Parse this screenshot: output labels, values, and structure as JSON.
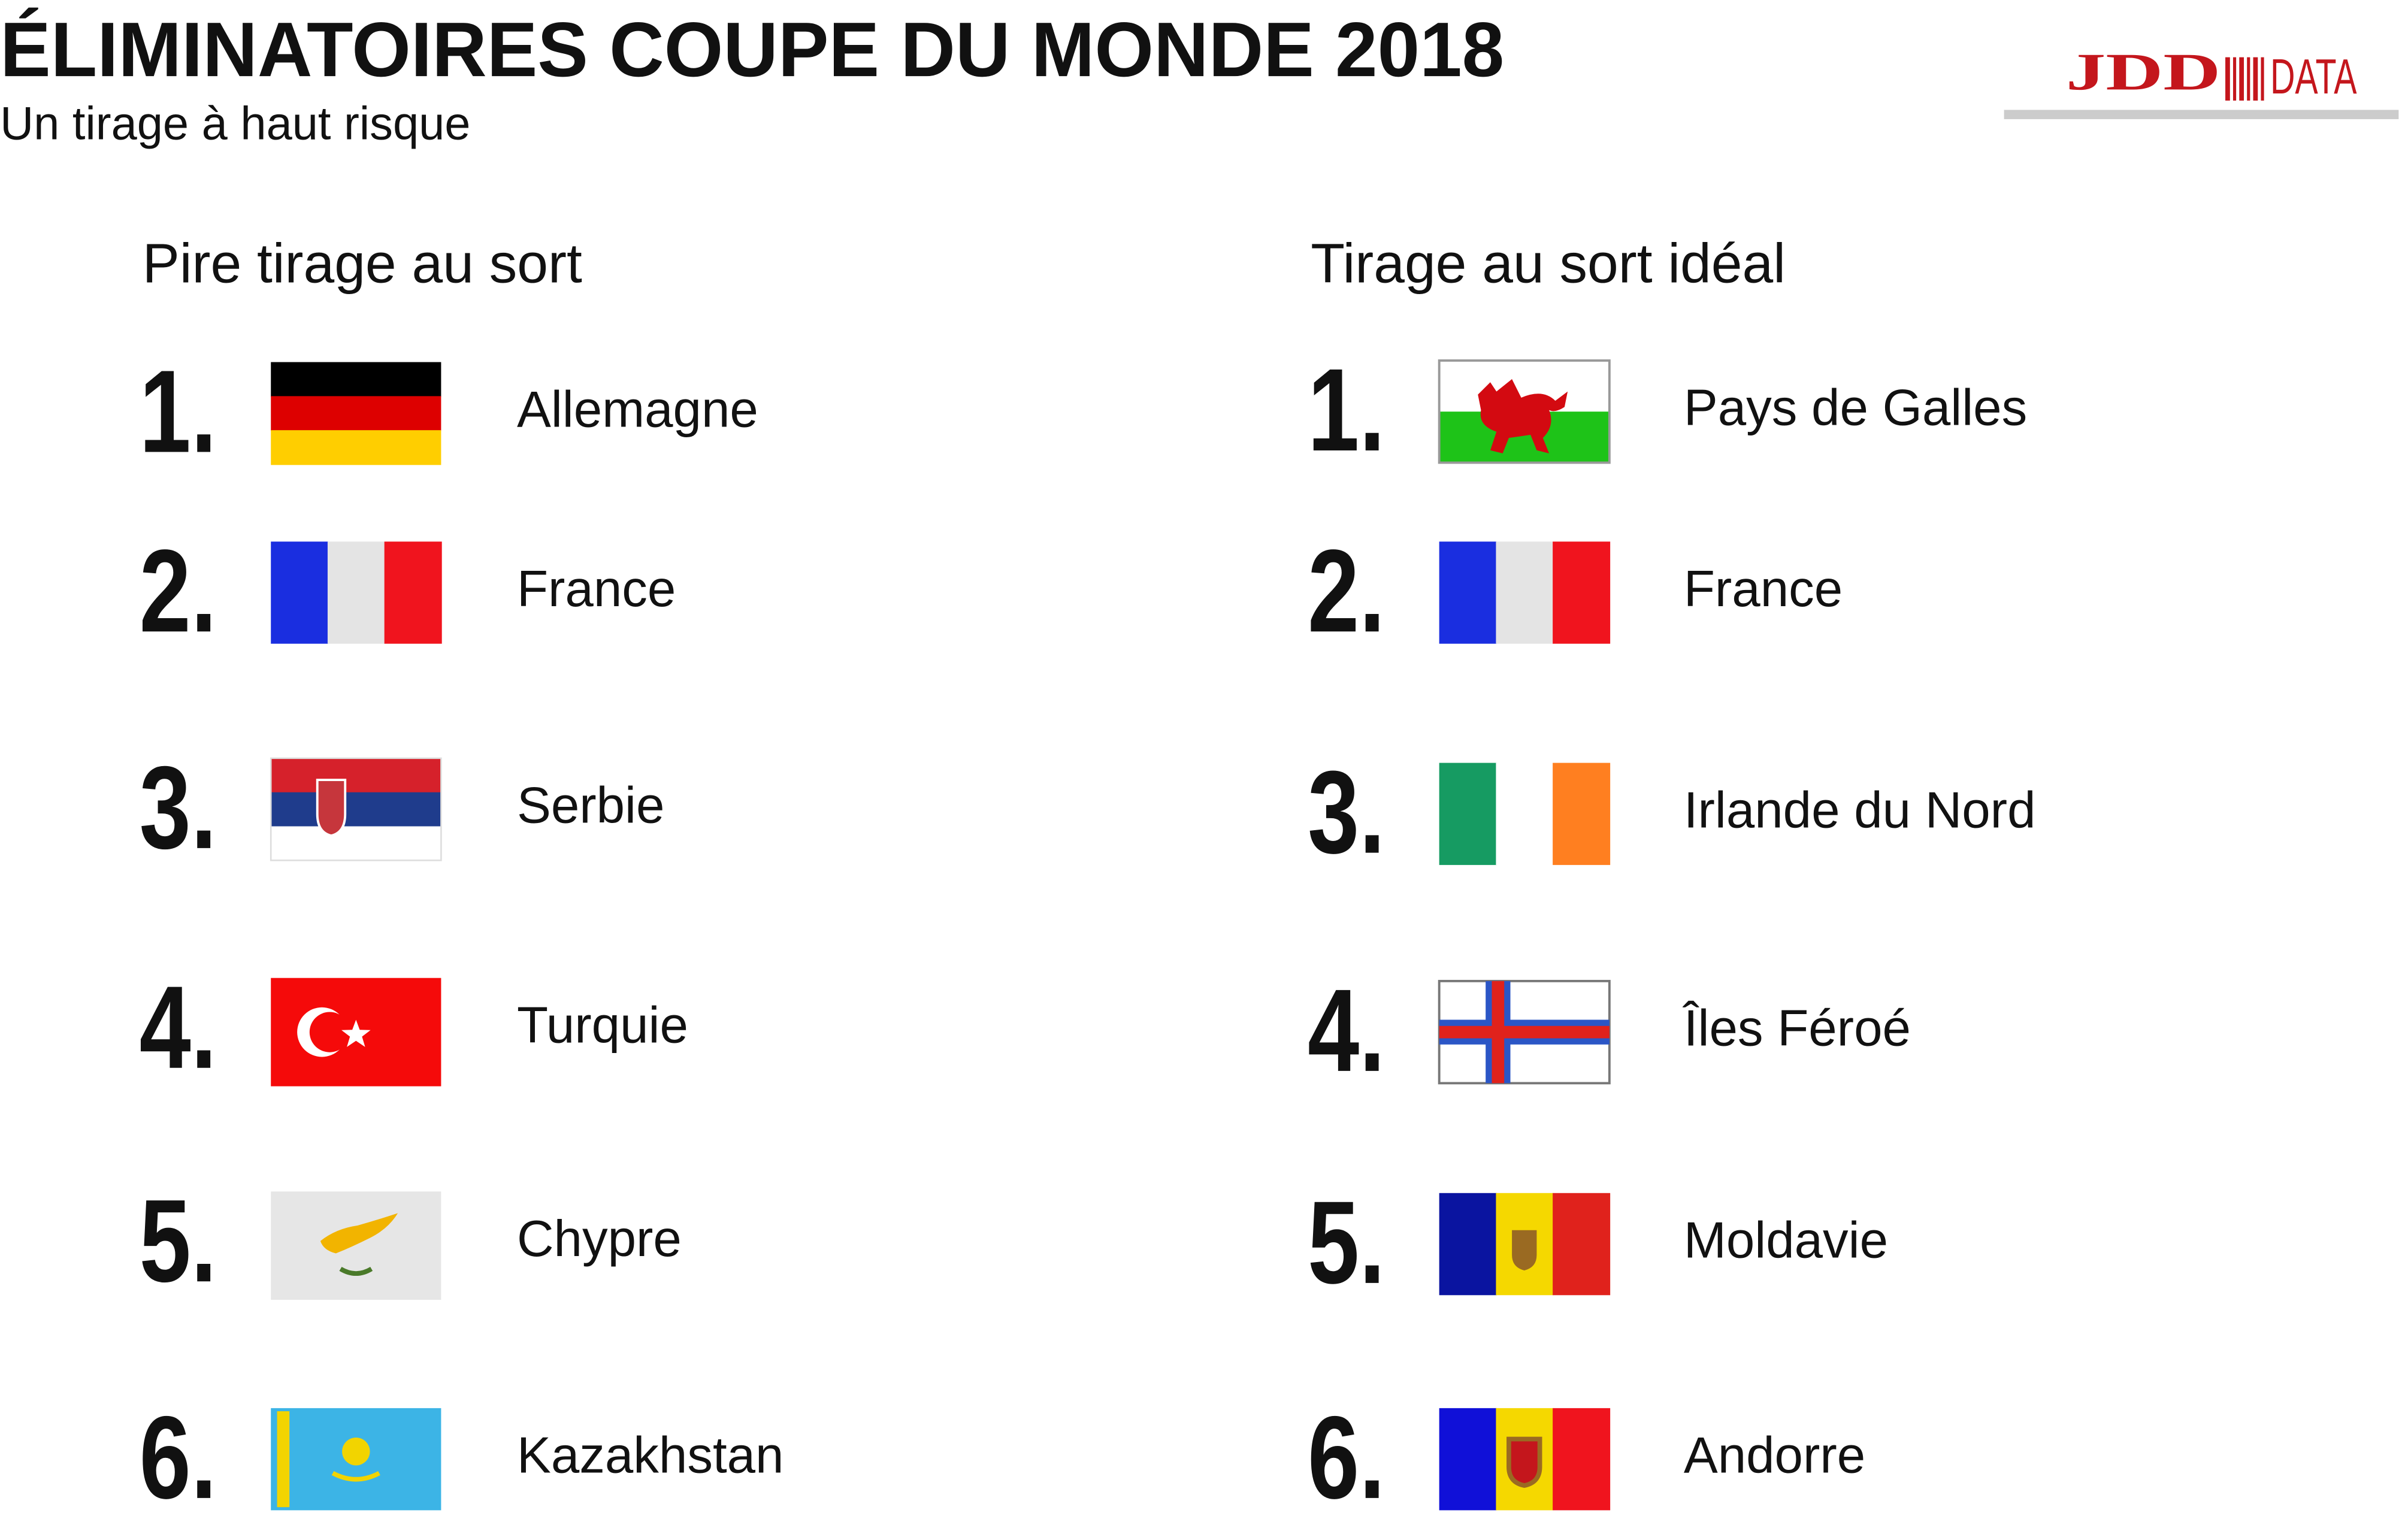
{
  "header": {
    "title": "ÉLIMINATOIRES COUPE DU MONDE 2018",
    "subtitle": "Un tirage à haut risque",
    "logo": "JDD",
    "logo_suffix": "DATA"
  },
  "lists": [
    {
      "heading": "Pire tirage au sort",
      "items": [
        {
          "rank": "1.",
          "country": "Allemagne"
        },
        {
          "rank": "2.",
          "country": "France"
        },
        {
          "rank": "3.",
          "country": "Serbie"
        },
        {
          "rank": "4.",
          "country": "Turquie"
        },
        {
          "rank": "5.",
          "country": "Chypre"
        },
        {
          "rank": "6.",
          "country": "Kazakhstan"
        }
      ]
    },
    {
      "heading": "Tirage au sort idéal",
      "items": [
        {
          "rank": "1.",
          "country": "Pays de Galles"
        },
        {
          "rank": "2.",
          "country": "France"
        },
        {
          "rank": "3.",
          "country": "Irlande du Nord"
        },
        {
          "rank": "4.",
          "country": "Îles Féroé"
        },
        {
          "rank": "5.",
          "country": "Moldavie"
        },
        {
          "rank": "6.",
          "country": "Andorre"
        }
      ]
    }
  ]
}
